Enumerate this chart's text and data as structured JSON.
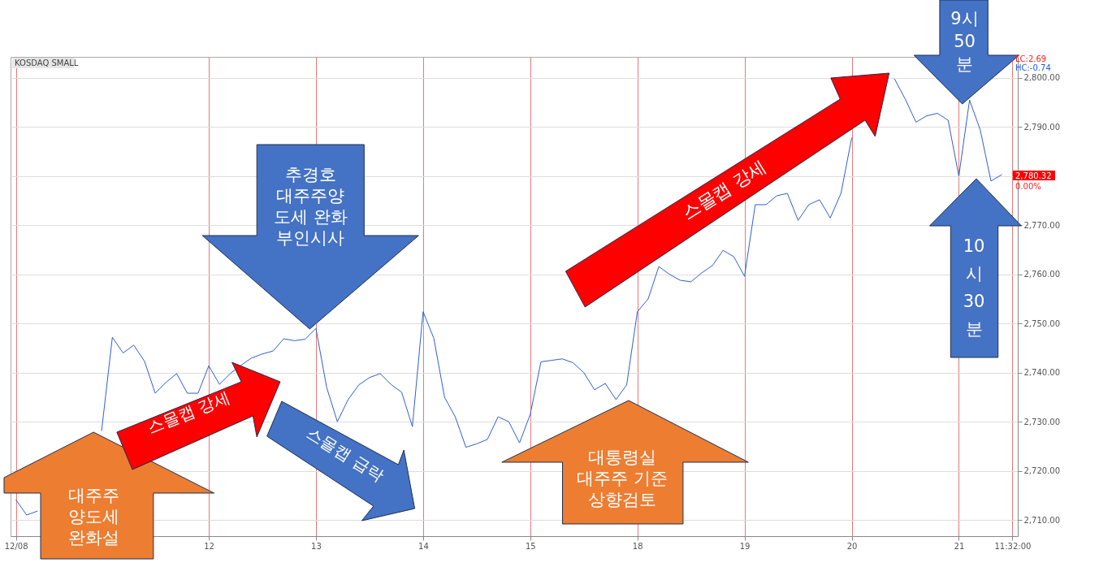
{
  "chart_data": {
    "type": "line",
    "title": "KOSDAQ SMALL",
    "categories": [
      "12/08",
      null,
      null,
      null,
      null,
      null,
      null,
      null,
      null,
      null,
      null,
      null,
      null,
      null,
      null,
      null,
      null,
      null,
      "12",
      null,
      null,
      null,
      null,
      null,
      null,
      null,
      null,
      null,
      "13",
      null,
      null,
      null,
      null,
      null,
      null,
      null,
      null,
      null,
      "14",
      null,
      null,
      null,
      null,
      null,
      null,
      null,
      null,
      null,
      "15",
      null,
      null,
      null,
      null,
      null,
      null,
      null,
      null,
      null,
      "18",
      null,
      null,
      null,
      null,
      null,
      null,
      null,
      null,
      null,
      "19",
      null,
      null,
      null,
      null,
      null,
      null,
      null,
      null,
      null,
      "20",
      null,
      null,
      null,
      null,
      null,
      null,
      null,
      null,
      null,
      "21",
      null,
      null,
      null,
      null,
      "11:32:00"
    ],
    "ylim": [
      2706.7,
      2804.3
    ],
    "yticks": [
      {
        "value": 2710,
        "label": "2,710.00"
      },
      {
        "value": 2720,
        "label": "2,720.00"
      },
      {
        "value": 2730,
        "label": "2,730.00"
      },
      {
        "value": 2740,
        "label": "2,740.00"
      },
      {
        "value": 2750,
        "label": "2,750.00"
      },
      {
        "value": 2760,
        "label": "2,760.00"
      },
      {
        "value": 2770,
        "label": "2,770.00"
      },
      {
        "value": 2780,
        "label": null
      },
      {
        "value": 2790,
        "label": "2,790.00"
      },
      {
        "value": 2800,
        "label": "2,800.00"
      }
    ],
    "grid": true,
    "series": [
      {
        "color": "#2f5fd0",
        "values": [
          2714.1,
          2711,
          2711.8,
          null,
          null,
          null,
          null,
          null,
          2728.2,
          2747.2,
          2744,
          2745.6,
          2742.3,
          2735.8,
          2738,
          2739.8,
          2735.8,
          2735.8,
          2741.4,
          2737.6,
          2739.8,
          2741.5,
          2743,
          2743.8,
          2744.4,
          2746.9,
          2746.5,
          2746.8,
          2749,
          2737,
          2730,
          2734.5,
          2737.5,
          2739,
          2739.8,
          2737.6,
          2736,
          2729,
          2752.4,
          2747,
          2735,
          2731,
          2724.8,
          2725.5,
          2726.4,
          2731,
          2730,
          2725.7,
          2731.5,
          2742.2,
          2742.5,
          2742.8,
          2742,
          2740,
          2736.5,
          2737.8,
          2734.5,
          2737.5,
          2752.4,
          2755,
          2761.6,
          2760,
          2758.8,
          2758.5,
          2760.3,
          2761.8,
          2764.9,
          2763.6,
          2759.6,
          2774.2,
          2774.2,
          2776,
          2776.5,
          2771,
          2774.2,
          2775.2,
          2771.5,
          2776.5,
          2787.8,
          null,
          null,
          null,
          2799.8,
          2795.7,
          2791,
          2792.3,
          2792.8,
          2791.4,
          2780,
          2795.5,
          2789.4,
          2779,
          2780.3,
          null
        ]
      }
    ],
    "annotations": [
      "대주주\n양도세\n완화설",
      "스몰캡 강세",
      "추경호\n대주주양\n도세 완화\n부인시사",
      "스몰캡 급락",
      "대통령실\n대주주 기준\n상향검토",
      "스몰캡 강세",
      "9시\n50\n분",
      "10\n시\n30\n분",
      "LC:2.69",
      "HC:-0.74",
      "2,780.32",
      "0.00%"
    ]
  }
}
